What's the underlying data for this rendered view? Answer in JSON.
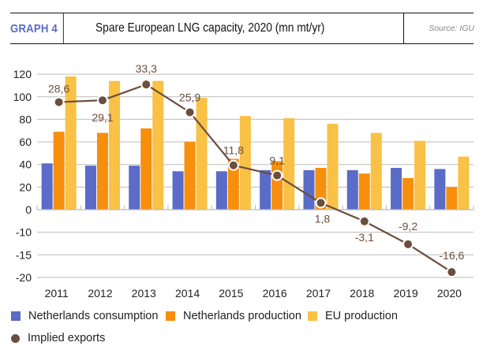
{
  "header": {
    "graph_label": "GRAPH 4",
    "title": "Spare European LNG capacity, 2020 (mn mt/yr)",
    "source": "Source: IGU"
  },
  "colors": {
    "netherlands_consumption": "#5a6bc8",
    "netherlands_production": "#f78f0d",
    "eu_production": "#f9c145",
    "implied_exports": "#6b4e3d",
    "gridline": "#bbbbbb",
    "graph_label": "#5b6bc7"
  },
  "legend": [
    {
      "label": "Netherlands consumption",
      "shape": "square",
      "color": "#5a6bc8"
    },
    {
      "label": "Netherlands production",
      "shape": "square",
      "color": "#f78f0d"
    },
    {
      "label": "EU production",
      "shape": "square",
      "color": "#f9c145"
    },
    {
      "label": "Implied exports",
      "shape": "circle",
      "color": "#6b4e3d"
    }
  ],
  "chart_data": {
    "type": "bar",
    "title": "Spare European LNG capacity, 2020 (mn mt/yr)",
    "xlabel": "",
    "ylabel": "",
    "categories": [
      "2011",
      "2012",
      "2013",
      "2014",
      "2015",
      "2016",
      "2017",
      "2018",
      "2019",
      "2020"
    ],
    "y_tick_labels": [
      "120",
      "100",
      "80",
      "60",
      "40",
      "20",
      "0",
      "-10",
      "-15",
      "-20"
    ],
    "ylim": [
      -20,
      120
    ],
    "grid": true,
    "legend_position": "bottom",
    "series": [
      {
        "name": "Netherlands consumption",
        "type": "bar",
        "values": [
          41,
          39,
          39,
          34,
          34,
          35,
          35,
          35,
          37,
          36
        ]
      },
      {
        "name": "Netherlands production",
        "type": "bar",
        "values": [
          69,
          68,
          72,
          60,
          45,
          43,
          37,
          32,
          28,
          20
        ]
      },
      {
        "name": "EU production",
        "type": "bar",
        "values": [
          118,
          114,
          114,
          99,
          83,
          81,
          76,
          68,
          61,
          47
        ]
      },
      {
        "name": "Implied exports",
        "type": "line",
        "values": [
          28.6,
          29.1,
          33.3,
          25.9,
          11.8,
          9.1,
          1.8,
          -3.1,
          -9.2,
          -16.6
        ],
        "data_labels": [
          "28,6",
          "29,1",
          "33,3",
          "25,9",
          "11,8",
          "9,1",
          "1,8",
          "-3,1",
          "-9,2",
          "-16,6"
        ]
      }
    ]
  }
}
